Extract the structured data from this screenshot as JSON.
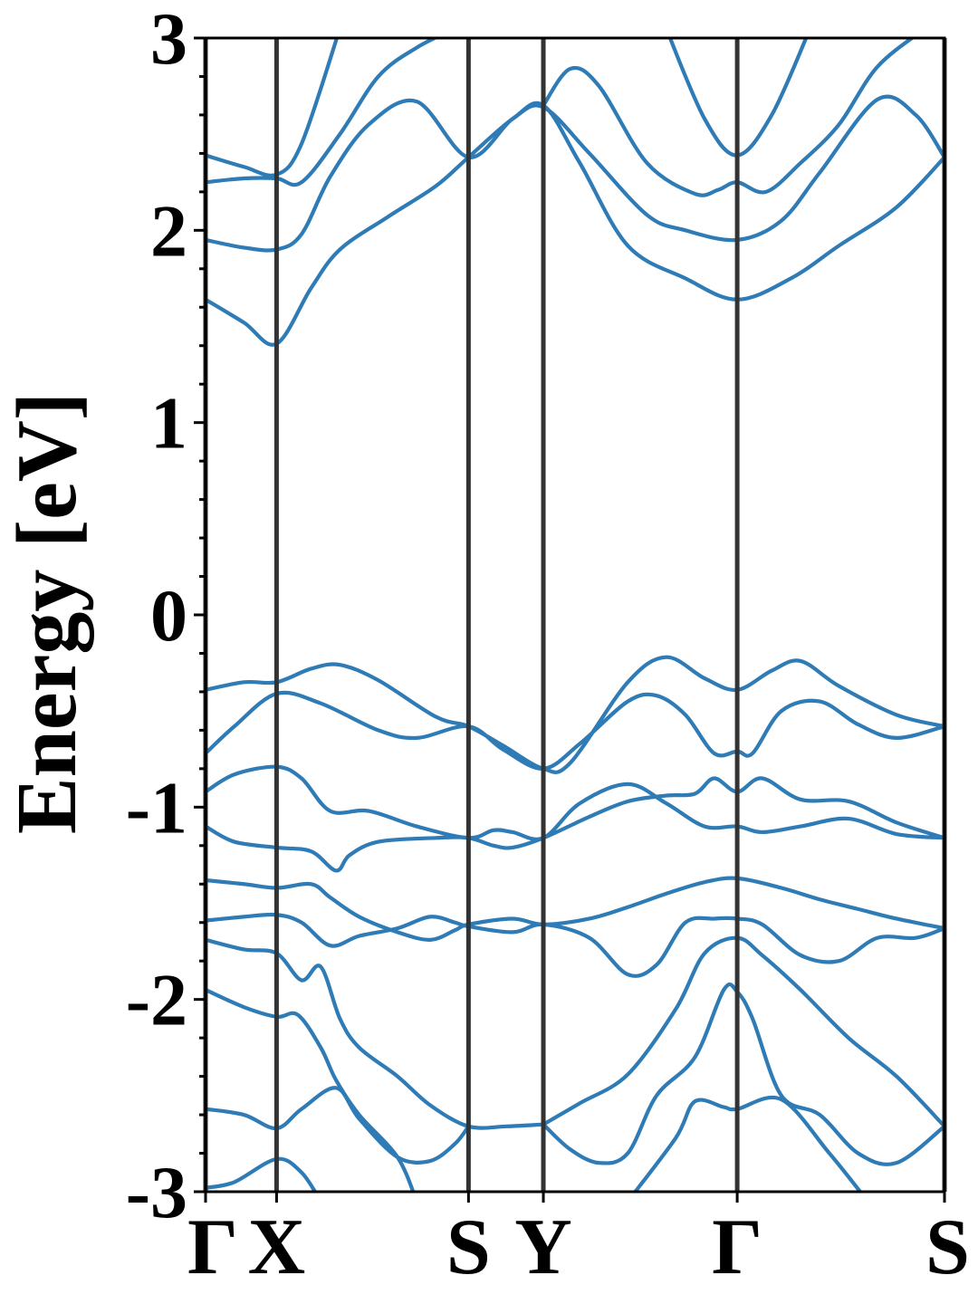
{
  "chart_data": {
    "type": "line",
    "title": "",
    "ylabel": "Energy [eV]",
    "xlabel": "",
    "ylim": [
      -3,
      3
    ],
    "yticks": [
      -3,
      -2,
      -1,
      0,
      1,
      2,
      3
    ],
    "ytick_labels": [
      "-3",
      "-2",
      "-1",
      "0",
      "1",
      "2",
      "3"
    ],
    "xlim": [
      0,
      3.85
    ],
    "high_symmetry_points": [
      {
        "label": "Γ",
        "x": 0.0
      },
      {
        "label": "X",
        "x": 0.37
      },
      {
        "label": "S",
        "x": 1.37
      },
      {
        "label": "Y",
        "x": 1.76
      },
      {
        "label": "Γ",
        "x": 2.77
      },
      {
        "label": "S",
        "x": 3.85
      }
    ],
    "grid": false,
    "legend": "none",
    "colors": {
      "bands": "#2e7bb6",
      "vlines": "#333333",
      "axes": "#000000"
    },
    "series": [
      {
        "values": [
          [
            0,
            -2.98
          ],
          [
            0.15,
            -2.95
          ],
          [
            0.37,
            -2.83
          ],
          [
            0.5,
            -2.9
          ],
          [
            0.6,
            -3.05
          ]
        ]
      },
      {
        "values": [
          [
            0,
            -2.57
          ],
          [
            0.2,
            -2.6
          ],
          [
            0.37,
            -2.67
          ],
          [
            0.5,
            -2.57
          ],
          [
            0.68,
            -2.46
          ],
          [
            0.8,
            -2.62
          ],
          [
            1.0,
            -2.82
          ],
          [
            1.17,
            -2.84
          ],
          [
            1.3,
            -2.75
          ],
          [
            1.37,
            -2.66
          ]
        ]
      },
      {
        "values": [
          [
            0,
            -1.95
          ],
          [
            0.2,
            -2.04
          ],
          [
            0.37,
            -2.09
          ],
          [
            0.48,
            -2.08
          ],
          [
            0.6,
            -2.25
          ],
          [
            0.68,
            -2.42
          ],
          [
            0.8,
            -2.6
          ],
          [
            1.0,
            -2.82
          ],
          [
            1.1,
            -3.05
          ]
        ]
      },
      {
        "values": [
          [
            0,
            -1.69
          ],
          [
            0.2,
            -1.74
          ],
          [
            0.37,
            -1.76
          ],
          [
            0.5,
            -1.9
          ],
          [
            0.6,
            -1.83
          ],
          [
            0.7,
            -2.1
          ],
          [
            0.8,
            -2.25
          ],
          [
            1.0,
            -2.4
          ],
          [
            1.17,
            -2.55
          ],
          [
            1.37,
            -2.66
          ],
          [
            1.57,
            -2.66
          ],
          [
            1.76,
            -2.65
          ]
        ]
      },
      {
        "values": [
          [
            0,
            -1.59
          ],
          [
            0.2,
            -1.57
          ],
          [
            0.37,
            -1.56
          ],
          [
            0.5,
            -1.6
          ],
          [
            0.65,
            -1.72
          ],
          [
            0.8,
            -1.67
          ],
          [
            1.0,
            -1.63
          ],
          [
            1.17,
            -1.57
          ],
          [
            1.3,
            -1.6
          ],
          [
            1.37,
            -1.62
          ],
          [
            1.6,
            -1.65
          ],
          [
            1.76,
            -1.61
          ],
          [
            2.0,
            -1.68
          ],
          [
            2.2,
            -1.87
          ],
          [
            2.35,
            -1.82
          ],
          [
            2.5,
            -1.6
          ],
          [
            2.65,
            -1.58
          ],
          [
            2.77,
            -1.58
          ],
          [
            2.9,
            -1.61
          ],
          [
            3.1,
            -1.77
          ],
          [
            3.3,
            -1.8
          ],
          [
            3.5,
            -1.68
          ],
          [
            3.7,
            -1.68
          ],
          [
            3.85,
            -1.63
          ]
        ]
      },
      {
        "values": [
          [
            0,
            -1.38
          ],
          [
            0.2,
            -1.4
          ],
          [
            0.37,
            -1.42
          ],
          [
            0.55,
            -1.4
          ],
          [
            0.65,
            -1.47
          ],
          [
            0.8,
            -1.57
          ],
          [
            1.0,
            -1.65
          ],
          [
            1.17,
            -1.69
          ],
          [
            1.3,
            -1.64
          ],
          [
            1.37,
            -1.61
          ],
          [
            1.6,
            -1.58
          ],
          [
            1.76,
            -1.61
          ],
          [
            2.0,
            -1.58
          ],
          [
            2.2,
            -1.52
          ],
          [
            2.4,
            -1.45
          ],
          [
            2.6,
            -1.39
          ],
          [
            2.77,
            -1.37
          ],
          [
            3.0,
            -1.42
          ],
          [
            3.2,
            -1.48
          ],
          [
            3.4,
            -1.53
          ],
          [
            3.6,
            -1.58
          ],
          [
            3.85,
            -1.63
          ]
        ]
      },
      {
        "values": [
          [
            0,
            -1.1
          ],
          [
            0.15,
            -1.18
          ],
          [
            0.37,
            -1.21
          ],
          [
            0.55,
            -1.23
          ],
          [
            0.68,
            -1.33
          ],
          [
            0.75,
            -1.25
          ],
          [
            0.9,
            -1.18
          ],
          [
            1.2,
            -1.16
          ],
          [
            1.37,
            -1.16
          ],
          [
            1.5,
            -1.2
          ],
          [
            1.6,
            -1.21
          ],
          [
            1.76,
            -1.16
          ],
          [
            2.0,
            -1.05
          ],
          [
            2.2,
            -0.97
          ],
          [
            2.4,
            -0.94
          ],
          [
            2.55,
            -0.93
          ],
          [
            2.65,
            -0.85
          ],
          [
            2.77,
            -0.92
          ],
          [
            2.9,
            -0.85
          ],
          [
            3.1,
            -0.96
          ],
          [
            3.35,
            -0.97
          ],
          [
            3.6,
            -1.08
          ],
          [
            3.85,
            -1.16
          ]
        ]
      },
      {
        "values": [
          [
            0,
            -0.92
          ],
          [
            0.15,
            -0.83
          ],
          [
            0.37,
            -0.79
          ],
          [
            0.5,
            -0.85
          ],
          [
            0.65,
            -1.02
          ],
          [
            0.85,
            -1.02
          ],
          [
            1.1,
            -1.1
          ],
          [
            1.37,
            -1.16
          ],
          [
            1.5,
            -1.12
          ],
          [
            1.6,
            -1.13
          ],
          [
            1.76,
            -1.16
          ],
          [
            1.95,
            -0.98
          ],
          [
            2.2,
            -0.88
          ],
          [
            2.4,
            -0.98
          ],
          [
            2.6,
            -1.1
          ],
          [
            2.77,
            -1.1
          ],
          [
            2.9,
            -1.13
          ],
          [
            3.1,
            -1.1
          ],
          [
            3.35,
            -1.06
          ],
          [
            3.6,
            -1.14
          ],
          [
            3.85,
            -1.16
          ]
        ]
      },
      {
        "values": [
          [
            0,
            -0.72
          ],
          [
            0.15,
            -0.58
          ],
          [
            0.37,
            -0.41
          ],
          [
            0.6,
            -0.46
          ],
          [
            0.9,
            -0.6
          ],
          [
            1.1,
            -0.64
          ],
          [
            1.37,
            -0.58
          ],
          [
            1.55,
            -0.7
          ],
          [
            1.76,
            -0.8
          ],
          [
            1.95,
            -0.67
          ],
          [
            2.2,
            -0.45
          ],
          [
            2.35,
            -0.42
          ],
          [
            2.5,
            -0.52
          ],
          [
            2.65,
            -0.72
          ],
          [
            2.77,
            -0.71
          ],
          [
            2.85,
            -0.72
          ],
          [
            3.0,
            -0.5
          ],
          [
            3.2,
            -0.45
          ],
          [
            3.4,
            -0.57
          ],
          [
            3.6,
            -0.64
          ],
          [
            3.85,
            -0.58
          ]
        ]
      },
      {
        "values": [
          [
            0,
            -0.39
          ],
          [
            0.2,
            -0.35
          ],
          [
            0.37,
            -0.35
          ],
          [
            0.55,
            -0.28
          ],
          [
            0.7,
            -0.26
          ],
          [
            0.9,
            -0.34
          ],
          [
            1.2,
            -0.53
          ],
          [
            1.37,
            -0.58
          ],
          [
            1.55,
            -0.68
          ],
          [
            1.76,
            -0.8
          ],
          [
            1.9,
            -0.77
          ],
          [
            2.2,
            -0.35
          ],
          [
            2.4,
            -0.22
          ],
          [
            2.6,
            -0.33
          ],
          [
            2.77,
            -0.39
          ],
          [
            2.95,
            -0.29
          ],
          [
            3.1,
            -0.24
          ],
          [
            3.3,
            -0.37
          ],
          [
            3.6,
            -0.52
          ],
          [
            3.85,
            -0.58
          ]
        ]
      },
      {
        "values": [
          [
            0,
            1.64
          ],
          [
            0.2,
            1.52
          ],
          [
            0.37,
            1.41
          ],
          [
            0.55,
            1.7
          ],
          [
            0.7,
            1.9
          ],
          [
            0.95,
            2.07
          ],
          [
            1.2,
            2.23
          ],
          [
            1.37,
            2.38
          ],
          [
            1.6,
            2.58
          ],
          [
            1.76,
            2.65
          ],
          [
            1.95,
            2.35
          ],
          [
            2.2,
            1.92
          ],
          [
            2.5,
            1.75
          ],
          [
            2.77,
            1.64
          ],
          [
            3.05,
            1.75
          ],
          [
            3.3,
            1.92
          ],
          [
            3.6,
            2.12
          ],
          [
            3.85,
            2.38
          ]
        ]
      },
      {
        "values": [
          [
            0,
            1.95
          ],
          [
            0.2,
            1.91
          ],
          [
            0.37,
            1.9
          ],
          [
            0.5,
            1.98
          ],
          [
            0.65,
            2.28
          ],
          [
            0.85,
            2.55
          ],
          [
            1.1,
            2.67
          ],
          [
            1.37,
            2.38
          ],
          [
            1.6,
            2.58
          ],
          [
            1.76,
            2.64
          ],
          [
            2.0,
            2.4
          ],
          [
            2.3,
            2.08
          ],
          [
            2.5,
            2.0
          ],
          [
            2.77,
            1.95
          ],
          [
            3.0,
            2.05
          ],
          [
            3.2,
            2.3
          ],
          [
            3.5,
            2.68
          ],
          [
            3.7,
            2.6
          ],
          [
            3.85,
            2.38
          ]
        ]
      },
      {
        "values": [
          [
            0,
            2.25
          ],
          [
            0.2,
            2.27
          ],
          [
            0.37,
            2.27
          ],
          [
            0.5,
            2.25
          ],
          [
            0.7,
            2.5
          ],
          [
            0.9,
            2.8
          ],
          [
            1.1,
            2.95
          ],
          [
            1.3,
            3.05
          ]
        ]
      },
      {
        "values": [
          [
            0,
            2.39
          ],
          [
            0.2,
            2.33
          ],
          [
            0.37,
            2.29
          ],
          [
            0.5,
            2.45
          ],
          [
            0.7,
            3.05
          ]
        ]
      },
      {
        "values": [
          [
            1.76,
            2.65
          ],
          [
            1.9,
            2.84
          ],
          [
            2.05,
            2.75
          ],
          [
            2.3,
            2.35
          ],
          [
            2.55,
            2.19
          ],
          [
            2.67,
            2.21
          ],
          [
            2.77,
            2.25
          ],
          [
            2.92,
            2.2
          ],
          [
            3.1,
            2.35
          ],
          [
            3.3,
            2.55
          ],
          [
            3.5,
            2.85
          ],
          [
            3.75,
            3.05
          ]
        ]
      },
      {
        "values": [
          [
            2.4,
            3.05
          ],
          [
            2.6,
            2.58
          ],
          [
            2.77,
            2.39
          ],
          [
            2.95,
            2.6
          ],
          [
            3.15,
            3.05
          ]
        ]
      },
      {
        "values": [
          [
            1.76,
            -2.65
          ],
          [
            1.95,
            -2.54
          ],
          [
            2.2,
            -2.39
          ],
          [
            2.45,
            -2.05
          ],
          [
            2.6,
            -1.76
          ],
          [
            2.77,
            -1.68
          ],
          [
            2.9,
            -1.77
          ],
          [
            3.1,
            -1.95
          ],
          [
            3.35,
            -2.2
          ],
          [
            3.6,
            -2.4
          ],
          [
            3.85,
            -2.66
          ]
        ]
      },
      {
        "values": [
          [
            1.76,
            -2.65
          ],
          [
            1.9,
            -2.78
          ],
          [
            2.05,
            -2.85
          ],
          [
            2.2,
            -2.8
          ],
          [
            2.35,
            -2.5
          ],
          [
            2.55,
            -2.3
          ],
          [
            2.7,
            -1.95
          ],
          [
            2.77,
            -1.96
          ],
          [
            2.85,
            -2.1
          ],
          [
            3.0,
            -2.5
          ],
          [
            3.2,
            -2.6
          ],
          [
            3.4,
            -2.8
          ],
          [
            3.6,
            -2.85
          ],
          [
            3.85,
            -2.66
          ]
        ]
      },
      {
        "values": [
          [
            2.2,
            -3.05
          ],
          [
            2.45,
            -2.72
          ],
          [
            2.55,
            -2.53
          ],
          [
            2.7,
            -2.56
          ],
          [
            2.77,
            -2.57
          ],
          [
            3.0,
            -2.52
          ],
          [
            3.25,
            -2.8
          ],
          [
            3.45,
            -3.05
          ]
        ]
      }
    ]
  }
}
